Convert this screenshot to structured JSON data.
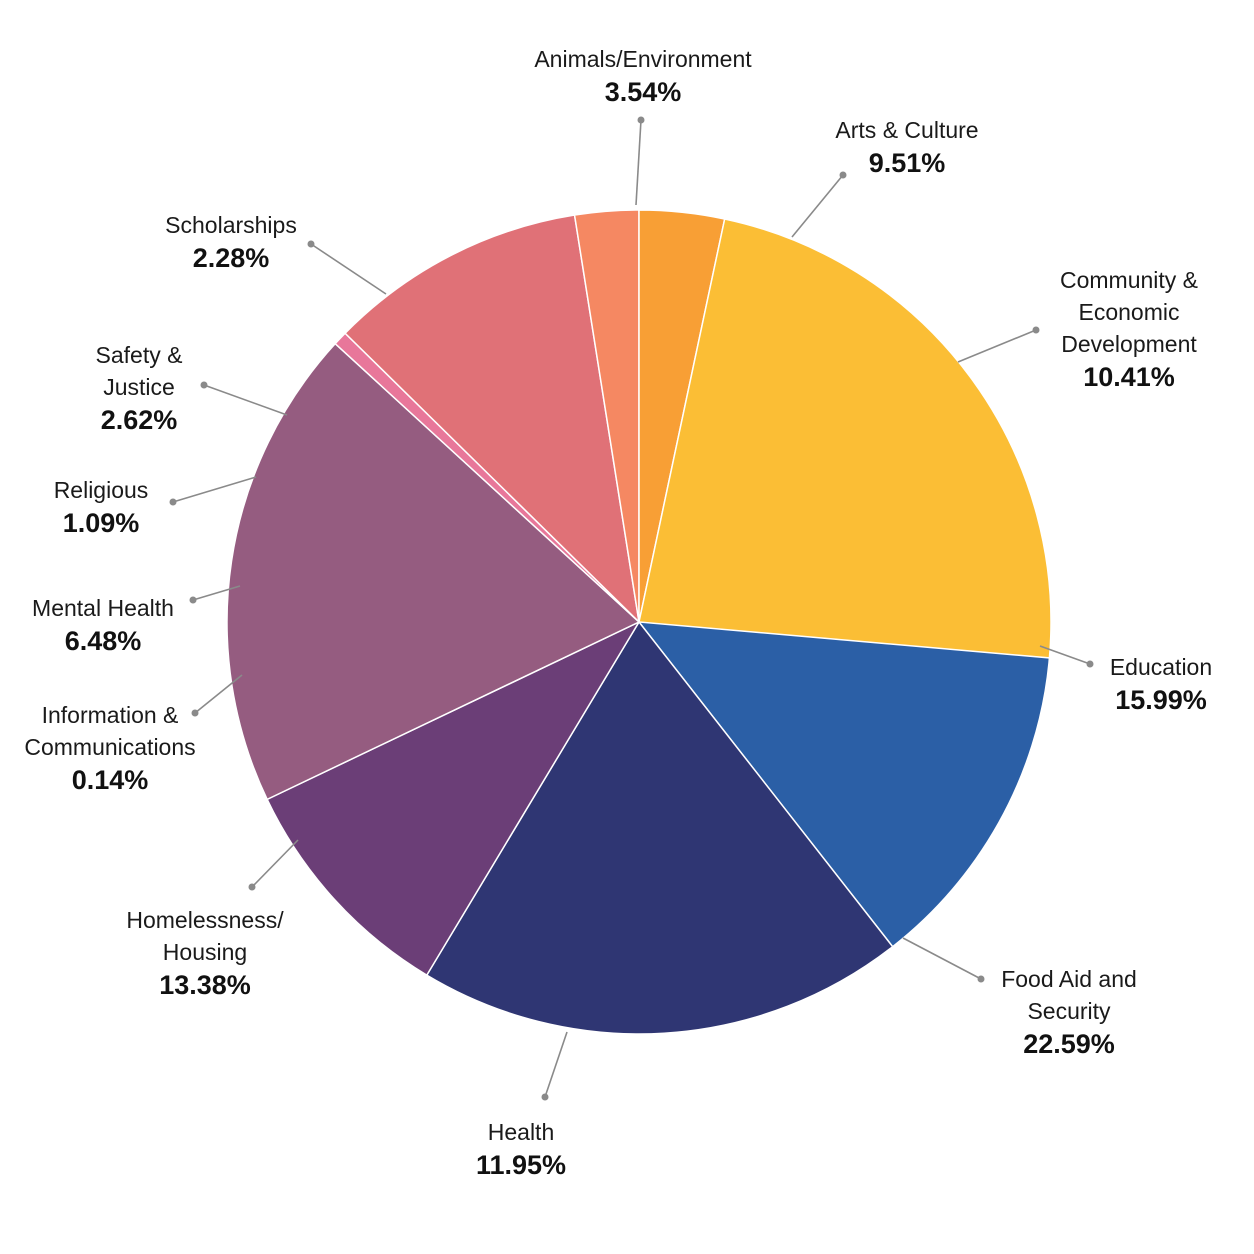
{
  "chart_data": {
    "type": "pie",
    "start_angle_deg": -5,
    "slices": [
      {
        "name": "Animals/Environment",
        "name_lines": [
          "Animals/Environment"
        ],
        "value": 3.54,
        "label": "3.54%",
        "color": "#67DEE0"
      },
      {
        "name": "Arts & Culture",
        "name_lines": [
          "Arts & Culture"
        ],
        "value": 9.51,
        "label": "9.51%",
        "color": "#3FB5D8"
      },
      {
        "name": "Community & Economic Development",
        "name_lines": [
          "Community &",
          "Economic",
          "Development"
        ],
        "value": 10.41,
        "label": "10.41%",
        "color": "#2E8EC6"
      },
      {
        "name": "Education",
        "name_lines": [
          "Education"
        ],
        "value": 15.99,
        "label": "15.99%",
        "color": "#2B5FA6"
      },
      {
        "name": "Food Aid and Security",
        "name_lines": [
          "Food Aid and",
          "Security"
        ],
        "value": 22.59,
        "label": "22.59%",
        "color": "#2F3673"
      },
      {
        "name": "Health",
        "name_lines": [
          "Health"
        ],
        "value": 11.95,
        "label": "11.95%",
        "color": "#6B3E77"
      },
      {
        "name": "Homelessness/ Housing",
        "name_lines": [
          "Homelessness/",
          "Housing"
        ],
        "value": 13.38,
        "label": "13.38%",
        "color": "#955C80"
      },
      {
        "name": "Information & Communications",
        "name_lines": [
          "Information &",
          "Communications"
        ],
        "value": 0.14,
        "label": "0.14%",
        "color": "#E8779A"
      },
      {
        "name": "Mental Health",
        "name_lines": [
          "Mental Health"
        ],
        "value": 6.48,
        "label": "6.48%",
        "color": "#E07177"
      },
      {
        "name": "Religious",
        "name_lines": [
          "Religious"
        ],
        "value": 1.09,
        "label": "1.09%",
        "color": "#F58862"
      },
      {
        "name": "Safety & Justice",
        "name_lines": [
          "Safety &",
          "Justice"
        ],
        "value": 2.62,
        "label": "2.62%",
        "color": "#F89F35"
      },
      {
        "name": "Scholarships",
        "name_lines": [
          "Scholarships"
        ],
        "value": 2.28,
        "label": "2.28%",
        "color": "#FBBE35"
      }
    ]
  }
}
